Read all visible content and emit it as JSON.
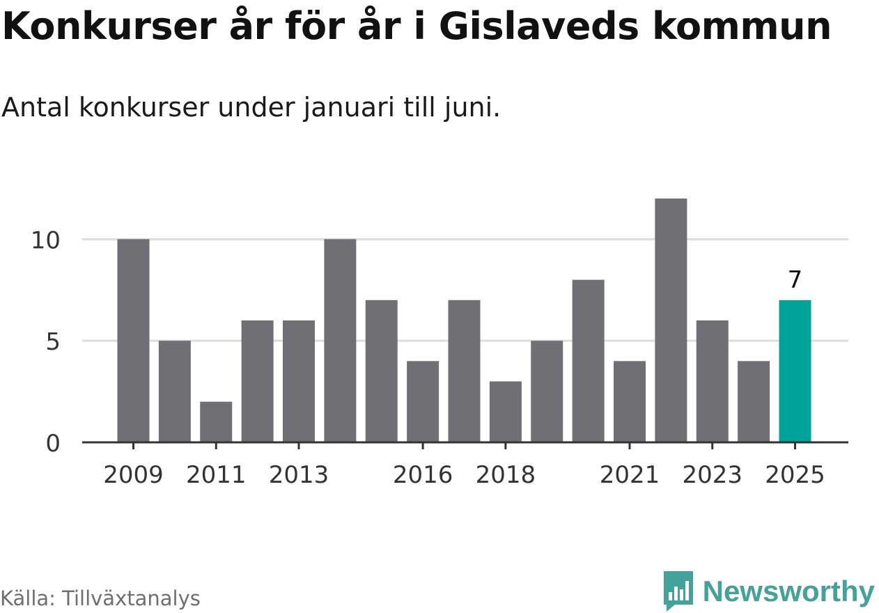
{
  "title": "Konkurser år för år i Gislaveds kommun",
  "subtitle": "Antal konkurser under januari till juni.",
  "source": "Källa: Tillväxtanalys",
  "brand": "Newsworthy",
  "colors": {
    "bar": "#706f74",
    "highlight": "#00a39a",
    "grid": "#dddddd",
    "axis": "#333333",
    "brand": "#43a39a"
  },
  "chart_data": {
    "type": "bar",
    "categories": [
      "2009",
      "2010",
      "2011",
      "2012",
      "2013",
      "2014",
      "2015",
      "2016",
      "2017",
      "2018",
      "2019",
      "2020",
      "2021",
      "2022",
      "2023",
      "2024",
      "2025"
    ],
    "values": [
      10,
      5,
      2,
      6,
      6,
      10,
      7,
      4,
      7,
      3,
      5,
      8,
      4,
      12,
      6,
      4,
      7
    ],
    "x_tick_labels": [
      "2009",
      "2011",
      "2013",
      "2016",
      "2018",
      "2021",
      "2023",
      "2025"
    ],
    "y_ticks": [
      0,
      5,
      10
    ],
    "ylim": [
      0,
      12
    ],
    "highlight_category": "2025",
    "data_labels": [
      {
        "category": "2025",
        "label": "7"
      }
    ],
    "grid": true,
    "legend": "none"
  }
}
